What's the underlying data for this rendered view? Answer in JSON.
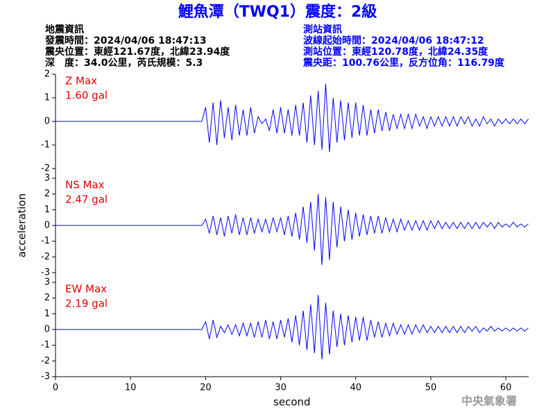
{
  "header": {
    "title": "鯉魚潭（TWQ1）震度：2級",
    "left": [
      "地震資訊",
      "發震時間：2024/04/06 18:47:13",
      "震央位置：東經121.67度，北緯23.94度",
      "深　度：34.0公里，芮氏規模：5.3"
    ],
    "right": [
      "測站資訊",
      "波線起始時間：2024/04/06 18:47:12",
      "測站位置：東經120.78度，北緯24.35度",
      "震央距：100.76公里，反方位角：116.79度"
    ]
  },
  "footer": "中央氣象署",
  "chart_data": [
    {
      "type": "line",
      "annotations": [
        "Z Max",
        "1.60 gal"
      ],
      "color": "#0000ff",
      "x": [
        0,
        19.5,
        20,
        20.5,
        21,
        21.5,
        22,
        22.5,
        23,
        23.5,
        24,
        24.5,
        25,
        25.5,
        26,
        26.5,
        27,
        27.5,
        28,
        28.5,
        29,
        29.5,
        30,
        30.5,
        31,
        31.5,
        32,
        32.5,
        33,
        33.5,
        34,
        34.5,
        35,
        35.5,
        36,
        36.5,
        37,
        37.5,
        38,
        38.5,
        39,
        39.5,
        40,
        40.5,
        41,
        41.5,
        42,
        42.5,
        43,
        43.5,
        44,
        44.5,
        45,
        45.5,
        46,
        46.5,
        47,
        47.5,
        48,
        48.5,
        49,
        49.5,
        50,
        50.5,
        51,
        51.5,
        52,
        52.5,
        53,
        53.5,
        54,
        54.5,
        55,
        55.5,
        56,
        56.5,
        57,
        57.5,
        58,
        58.5,
        59,
        59.5,
        60,
        60.5,
        61,
        61.5,
        62,
        62.5,
        63
      ],
      "values": [
        0,
        0,
        0.6,
        -0.9,
        0.8,
        -1.0,
        0.9,
        -0.7,
        0.6,
        -0.8,
        0.7,
        -0.6,
        0.5,
        -0.6,
        0.6,
        -0.5,
        0.2,
        -0.1,
        0.1,
        -0.4,
        0.5,
        -0.5,
        0.6,
        -0.5,
        0.5,
        -0.6,
        0.7,
        -0.6,
        0.8,
        -0.9,
        1.1,
        -1.0,
        1.3,
        -1.2,
        1.6,
        -1.3,
        1.0,
        -0.9,
        0.9,
        -0.8,
        0.8,
        -0.7,
        0.8,
        -0.6,
        0.7,
        -0.6,
        0.5,
        -0.5,
        0.5,
        -0.4,
        0.4,
        -0.4,
        0.3,
        -0.3,
        0.3,
        -0.3,
        0.3,
        -0.3,
        0.3,
        -0.2,
        0.2,
        -0.3,
        0.2,
        -0.2,
        0.2,
        -0.2,
        0.2,
        -0.2,
        0.2,
        -0.2,
        0.2,
        -0.1,
        0.2,
        -0.2,
        0.1,
        -0.2,
        0.2,
        -0.1,
        0.1,
        -0.2,
        0.1,
        -0.1,
        0.1,
        -0.1,
        0.1,
        -0.1,
        0.1,
        -0.1,
        0.1
      ],
      "xlim": [
        0,
        63
      ],
      "ylim": [
        -2,
        2
      ],
      "yticks": [
        -2,
        -1,
        0,
        1,
        2
      ]
    },
    {
      "type": "line",
      "annotations": [
        "NS Max",
        "2.47 gal"
      ],
      "color": "#0000ff",
      "ylabel": "acceleration",
      "x": [
        0,
        19.5,
        20,
        20.5,
        21,
        21.5,
        22,
        22.5,
        23,
        23.5,
        24,
        24.5,
        25,
        25.5,
        26,
        26.5,
        27,
        27.5,
        28,
        28.5,
        29,
        29.5,
        30,
        30.5,
        31,
        31.5,
        32,
        32.5,
        33,
        33.5,
        34,
        34.5,
        35,
        35.5,
        36,
        36.5,
        37,
        37.5,
        38,
        38.5,
        39,
        39.5,
        40,
        40.5,
        41,
        41.5,
        42,
        42.5,
        43,
        43.5,
        44,
        44.5,
        45,
        45.5,
        46,
        46.5,
        47,
        47.5,
        48,
        48.5,
        49,
        49.5,
        50,
        50.5,
        51,
        51.5,
        52,
        52.5,
        53,
        53.5,
        54,
        54.5,
        55,
        55.5,
        56,
        56.5,
        57,
        57.5,
        58,
        58.5,
        59,
        59.5,
        60,
        60.5,
        61,
        61.5,
        62,
        62.5,
        63
      ],
      "values": [
        0,
        0,
        0.4,
        -0.5,
        0.6,
        -0.6,
        0.5,
        -0.7,
        0.6,
        -0.5,
        0.7,
        -0.6,
        0.5,
        -0.6,
        0.5,
        -0.5,
        0.4,
        -0.4,
        0.4,
        -0.5,
        0.5,
        -0.4,
        0.5,
        -0.6,
        0.6,
        -0.7,
        0.8,
        -0.9,
        1.2,
        -1.1,
        1.5,
        -1.6,
        2.0,
        -2.5,
        1.8,
        -2.2,
        1.5,
        -1.4,
        1.2,
        -1.0,
        1.0,
        -0.9,
        0.8,
        -0.7,
        0.7,
        -0.6,
        0.6,
        -0.5,
        0.6,
        -0.5,
        0.5,
        -0.4,
        0.4,
        -0.4,
        0.4,
        -0.3,
        0.3,
        -0.3,
        0.3,
        -0.3,
        0.3,
        -0.3,
        0.3,
        -0.2,
        0.3,
        -0.2,
        0.2,
        -0.2,
        0.2,
        -0.2,
        0.2,
        -0.2,
        0.2,
        -0.2,
        0.2,
        -0.2,
        0.2,
        -0.1,
        0.2,
        -0.2,
        0.2,
        -0.1,
        0.1,
        -0.1,
        0.2,
        -0.1,
        0.1,
        -0.1,
        0.1
      ],
      "xlim": [
        0,
        63
      ],
      "ylim": [
        -3,
        3
      ],
      "yticks": [
        -3,
        -2,
        -1,
        0,
        1,
        2,
        3
      ]
    },
    {
      "type": "line",
      "annotations": [
        "EW Max",
        "2.19 gal"
      ],
      "color": "#0000ff",
      "xlabel": "second",
      "x": [
        0,
        19.5,
        20,
        20.5,
        21,
        21.5,
        22,
        22.5,
        23,
        23.5,
        24,
        24.5,
        25,
        25.5,
        26,
        26.5,
        27,
        27.5,
        28,
        28.5,
        29,
        29.5,
        30,
        30.5,
        31,
        31.5,
        32,
        32.5,
        33,
        33.5,
        34,
        34.5,
        35,
        35.5,
        36,
        36.5,
        37,
        37.5,
        38,
        38.5,
        39,
        39.5,
        40,
        40.5,
        41,
        41.5,
        42,
        42.5,
        43,
        43.5,
        44,
        44.5,
        45,
        45.5,
        46,
        46.5,
        47,
        47.5,
        48,
        48.5,
        49,
        49.5,
        50,
        50.5,
        51,
        51.5,
        52,
        52.5,
        53,
        53.5,
        54,
        54.5,
        55,
        55.5,
        56,
        56.5,
        57,
        57.5,
        58,
        58.5,
        59,
        59.5,
        60,
        60.5,
        61,
        61.5,
        62,
        62.5,
        63
      ],
      "values": [
        0,
        0,
        0.5,
        -0.6,
        0.6,
        -0.5,
        0.2,
        -0.2,
        0.3,
        -0.3,
        0.3,
        -0.4,
        0.4,
        -0.4,
        0.4,
        -0.5,
        0.5,
        -0.5,
        0.6,
        -0.6,
        0.5,
        -0.6,
        0.6,
        -0.5,
        0.7,
        -0.8,
        0.9,
        -1.0,
        1.2,
        -1.3,
        1.6,
        -1.5,
        2.2,
        -1.9,
        1.7,
        -1.6,
        1.2,
        -1.1,
        1.0,
        -1.0,
        0.9,
        -0.8,
        0.8,
        -0.7,
        0.8,
        -0.7,
        0.6,
        -0.5,
        0.5,
        -0.5,
        0.4,
        -0.4,
        0.4,
        -0.3,
        0.3,
        -0.3,
        0.3,
        -0.3,
        0.3,
        -0.2,
        0.3,
        -0.2,
        0.2,
        -0.2,
        0.2,
        -0.2,
        0.2,
        -0.2,
        0.2,
        -0.2,
        0.2,
        -0.2,
        0.2,
        -0.1,
        0.2,
        -0.2,
        0.1,
        -0.1,
        0.2,
        -0.1,
        0.1,
        -0.1,
        0.1,
        -0.1,
        0.1,
        -0.1,
        0.1,
        -0.1,
        0.1
      ],
      "xlim": [
        0,
        63
      ],
      "ylim": [
        -3,
        3
      ],
      "yticks": [
        -3,
        -2,
        -1,
        0,
        1,
        2,
        3
      ],
      "xticks": [
        0,
        10,
        20,
        30,
        40,
        50,
        60
      ]
    }
  ]
}
